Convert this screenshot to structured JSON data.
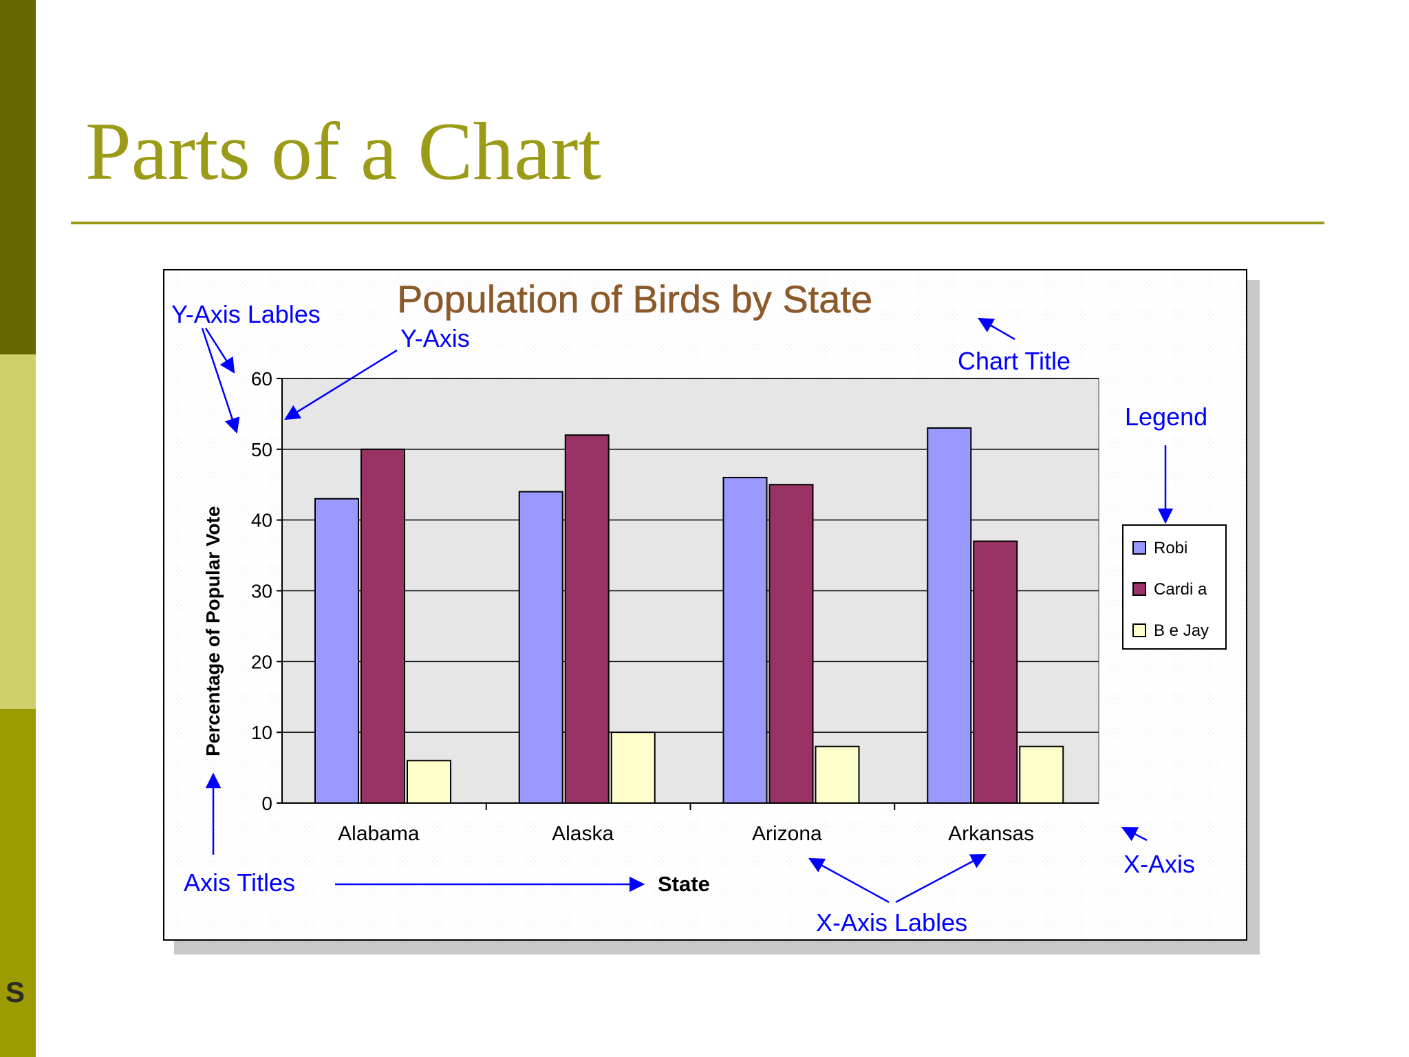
{
  "slide": {
    "title": "Parts of a Chart",
    "footer_letter": "S",
    "colors": {
      "title": "#9c9b17",
      "rule": "#9c9b17",
      "band_top": "#666600",
      "band_middle": "#cfcf6b",
      "band_bottom": "#9c9b00"
    }
  },
  "chart_data": {
    "type": "bar",
    "title": "Population of Birds by State",
    "xlabel": "State",
    "ylabel": "Percentage of Popular Vote",
    "categories": [
      "Alabama",
      "Alaska",
      "Arizona",
      "Arkansas"
    ],
    "series": [
      {
        "name": "Robi",
        "color": "#9999ff",
        "values": [
          43,
          44,
          46,
          53
        ]
      },
      {
        "name": "Cardi a",
        "color": "#993366",
        "values": [
          50,
          52,
          45,
          37
        ]
      },
      {
        "name": "B e Jay",
        "color": "#ffffcc",
        "values": [
          6,
          10,
          8,
          8
        ]
      }
    ],
    "ylim": [
      0,
      60
    ],
    "yticks": [
      0,
      10,
      20,
      30,
      40,
      50,
      60
    ],
    "grid": true,
    "legend_position": "right",
    "colors": {
      "title": "#8b5a2b",
      "plot_background": "#e6e6e6",
      "annotation": "#0000ff"
    }
  },
  "annotations": {
    "y_axis_labels": "Y-Axis Lables",
    "y_axis": "Y-Axis",
    "chart_title": "Chart Title",
    "legend": "Legend",
    "axis_titles": "Axis Titles",
    "x_axis": "X-Axis",
    "x_axis_labels": "X-Axis Lables"
  }
}
